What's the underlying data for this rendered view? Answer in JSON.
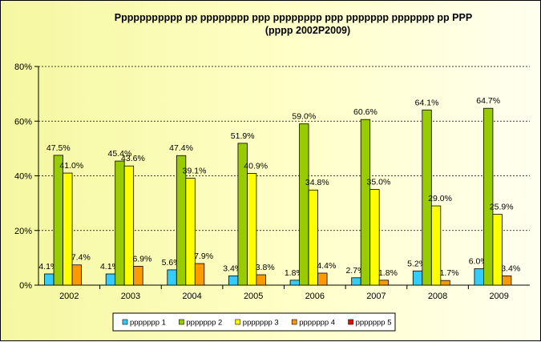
{
  "chart_data": {
    "type": "bar",
    "title": "Ppppppppppp pp pppppppp ppp pppppppp ppp ppppppp ppppppp pp PPP",
    "subtitle": "(pppp 2002P2009)",
    "xlabel": "",
    "ylabel": "",
    "ylim": [
      0,
      80
    ],
    "yticks": [
      "0%",
      "20%",
      "40%",
      "60%",
      "80%"
    ],
    "grid": true,
    "legend_position": "bottom",
    "categories": [
      "2002",
      "2003",
      "2004",
      "2005",
      "2006",
      "2007",
      "2008",
      "2009"
    ],
    "series": [
      {
        "name": "ppppppp 1",
        "color": "#33ccff",
        "values": [
          4.1,
          4.1,
          5.6,
          3.4,
          1.8,
          2.7,
          5.2,
          6.0
        ],
        "labels": [
          "4.1%",
          "4.1%",
          "5.6%",
          "3.4%",
          "1.8%",
          "2.7%",
          "5.2%",
          "6.0%"
        ]
      },
      {
        "name": "ppppppp 2",
        "color": "#99cc00",
        "values": [
          47.5,
          45.4,
          47.4,
          51.9,
          59.0,
          60.6,
          64.1,
          64.7
        ],
        "labels": [
          "47.5%",
          "45.4%",
          "47.4%",
          "51.9%",
          "59.0%",
          "60.6%",
          "64.1%",
          "64.7%"
        ]
      },
      {
        "name": "ppppppp 3",
        "color": "#ffff00",
        "values": [
          41.0,
          43.6,
          39.1,
          40.9,
          34.8,
          35.0,
          29.0,
          25.9
        ],
        "labels": [
          "41.0%",
          "43.6%",
          "39.1%",
          "40.9%",
          "34.8%",
          "35.0%",
          "29.0%",
          "25.9%"
        ]
      },
      {
        "name": "ppppppp 4",
        "color": "#ff9900",
        "values": [
          7.4,
          6.9,
          7.9,
          3.8,
          4.4,
          1.8,
          1.7,
          3.4
        ],
        "labels": [
          "7.4%",
          "6.9%",
          "7.9%",
          "3.8%",
          "4.4%",
          "1.8%",
          "1.7%",
          "3.4%"
        ]
      },
      {
        "name": "ppppppp 5",
        "color": "#ff0000",
        "values": [
          0,
          0,
          0,
          0,
          0,
          0,
          0,
          0
        ],
        "labels": [
          "",
          "",
          "",
          "",
          "",
          "",
          "",
          ""
        ]
      }
    ]
  }
}
